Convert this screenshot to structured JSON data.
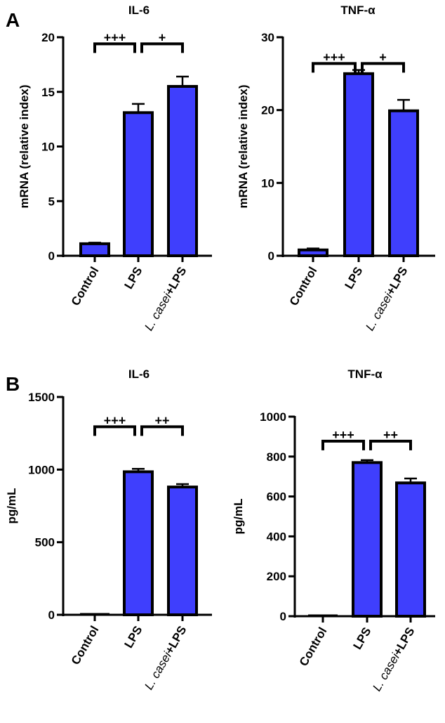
{
  "colors": {
    "bar": "#3f3ffd",
    "outline": "#000000"
  },
  "panel_letters": [
    "A",
    "B"
  ],
  "chart_data": [
    {
      "type": "bar",
      "panel": "A",
      "title": "IL-6",
      "ylabel": "mRNA (relative index)",
      "categories": [
        "Control",
        "LPS",
        "L. casei+LPS"
      ],
      "values": [
        1.1,
        13.1,
        15.5
      ],
      "errors": [
        0.1,
        0.8,
        0.9
      ],
      "ylim": [
        0,
        20
      ],
      "yticks": [
        0,
        5,
        10,
        15,
        20
      ],
      "grid": false,
      "brackets": [
        {
          "from": 0,
          "to": 1,
          "y": 19.4,
          "label": "+++"
        },
        {
          "from": 1,
          "to": 2,
          "y": 19.4,
          "label": "+"
        }
      ]
    },
    {
      "type": "bar",
      "panel": "A",
      "title": "TNF-α",
      "ylabel": "mRNA (relative index)",
      "categories": [
        "Control",
        "LPS",
        "L. casei+LPS"
      ],
      "values": [
        0.8,
        25.0,
        19.9
      ],
      "errors": [
        0.2,
        0.5,
        1.5
      ],
      "ylim": [
        0,
        30
      ],
      "yticks": [
        0,
        10,
        20,
        30
      ],
      "grid": false,
      "brackets": [
        {
          "from": 0,
          "to": 1,
          "y": 26.4,
          "label": "+++"
        },
        {
          "from": 1,
          "to": 2,
          "y": 26.4,
          "label": "+"
        }
      ]
    },
    {
      "type": "bar",
      "panel": "B",
      "title": "IL-6",
      "ylabel": "pg/mL",
      "categories": [
        "Control",
        "LPS",
        "L. casei+LPS"
      ],
      "values": [
        0,
        985,
        880
      ],
      "errors": [
        0,
        20,
        20
      ],
      "ylim": [
        0,
        1500
      ],
      "yticks": [
        0,
        500,
        1000,
        1500
      ],
      "grid": false,
      "brackets": [
        {
          "from": 0,
          "to": 1,
          "y": 1295,
          "label": "+++"
        },
        {
          "from": 1,
          "to": 2,
          "y": 1295,
          "label": "++"
        }
      ]
    },
    {
      "type": "bar",
      "panel": "B",
      "title": "TNF-α",
      "ylabel": "pg/mL",
      "categories": [
        "Control",
        "LPS",
        "L. casei+LPS"
      ],
      "values": [
        0,
        770,
        668
      ],
      "errors": [
        0,
        12,
        22
      ],
      "ylim": [
        0,
        1000
      ],
      "yticks": [
        0,
        200,
        400,
        600,
        800,
        1000
      ],
      "grid": false,
      "brackets": [
        {
          "from": 0,
          "to": 1,
          "y": 877,
          "label": "+++"
        },
        {
          "from": 1,
          "to": 2,
          "y": 877,
          "label": "++"
        }
      ]
    }
  ]
}
